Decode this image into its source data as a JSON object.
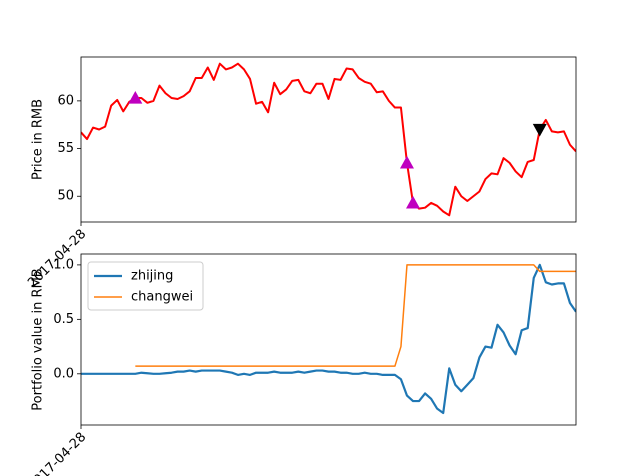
{
  "chart_data": [
    {
      "type": "line",
      "ylabel": "Price in RMB",
      "categories": [
        "2017-04-28",
        null,
        null,
        null,
        null,
        null,
        null,
        null,
        null,
        null,
        null,
        null,
        null,
        null,
        null,
        null,
        null,
        null,
        null,
        null,
        null,
        null,
        null,
        null,
        null,
        null,
        null,
        null,
        null,
        null,
        null,
        null,
        null,
        null,
        null,
        null,
        null,
        null,
        null,
        null,
        null,
        null,
        null,
        null,
        null,
        null,
        null,
        null,
        null,
        null,
        null,
        null,
        null,
        null,
        null,
        null,
        null,
        null,
        null,
        null,
        null,
        null,
        null,
        null,
        null,
        null,
        null,
        null,
        null,
        null,
        null,
        null,
        null,
        null,
        null,
        null,
        null,
        null,
        null,
        null,
        null,
        null,
        null
      ],
      "series": [
        {
          "color": "#ff0000",
          "linewidth": 2,
          "values": [
            56.7,
            56.0,
            57.2,
            57.0,
            57.3,
            59.5,
            60.1,
            58.9,
            59.9,
            60.3,
            60.3,
            59.8,
            60.0,
            61.6,
            60.8,
            60.3,
            60.2,
            60.5,
            61.0,
            62.4,
            62.4,
            63.5,
            62.2,
            63.9,
            63.3,
            63.5,
            63.9,
            63.3,
            62.3,
            59.7,
            59.9,
            58.8,
            61.9,
            60.7,
            61.2,
            62.1,
            62.2,
            61.0,
            60.8,
            61.8,
            61.8,
            60.2,
            62.3,
            62.2,
            63.4,
            63.3,
            62.4,
            62.0,
            61.8,
            60.9,
            61.0,
            60.0,
            59.3,
            59.3,
            53.5,
            49.3,
            48.7,
            48.8,
            49.3,
            49.0,
            48.4,
            48.0,
            51.0,
            50.0,
            49.5,
            50.0,
            50.5,
            51.8,
            52.4,
            52.3,
            54.0,
            53.5,
            52.6,
            52.0,
            53.6,
            53.8,
            57.0,
            58.0,
            56.8,
            56.7,
            56.8,
            55.4,
            54.7
          ]
        },
        {
          "color": "#bf00bf",
          "marker": "^",
          "x": [
            9,
            54,
            55
          ],
          "values": [
            60.3,
            53.5,
            49.3
          ]
        },
        {
          "color": "#000000",
          "marker": "v",
          "x": [
            76
          ],
          "values": [
            57.0
          ]
        }
      ],
      "ylim": [
        47.3,
        64.6
      ],
      "yticks": [
        50,
        55,
        60
      ],
      "legend": null
    },
    {
      "type": "line",
      "ylabel": "Portfolio value in RMB",
      "categories": [
        "2017-04-28",
        null,
        null,
        null,
        null,
        null,
        null,
        null,
        null,
        null,
        null,
        null,
        null,
        null,
        null,
        null,
        null,
        null,
        null,
        null,
        null,
        null,
        null,
        null,
        null,
        null,
        null,
        null,
        null,
        null,
        null,
        null,
        null,
        null,
        null,
        null,
        null,
        null,
        null,
        null,
        null,
        null,
        null,
        null,
        null,
        null,
        null,
        null,
        null,
        null,
        null,
        null,
        null,
        null,
        null,
        null,
        null,
        null,
        null,
        null,
        null,
        null,
        null,
        null,
        null,
        null,
        null,
        null,
        null,
        null,
        null,
        null,
        null,
        null,
        null,
        null,
        null,
        null,
        null,
        null,
        null,
        null,
        null
      ],
      "series": [
        {
          "name": "zhijing",
          "color": "#1f77b4",
          "linewidth": 2.2,
          "values": [
            0,
            0,
            0,
            0,
            0,
            0,
            0,
            0,
            0,
            0,
            0.01,
            0.005,
            0,
            0,
            0.005,
            0.01,
            0.02,
            0.02,
            0.03,
            0.02,
            0.03,
            0.03,
            0.03,
            0.03,
            0.02,
            0.01,
            -0.01,
            0,
            -0.01,
            0.01,
            0.01,
            0.01,
            0.02,
            0.01,
            0.01,
            0.01,
            0.02,
            0.01,
            0.02,
            0.03,
            0.03,
            0.02,
            0.02,
            0.01,
            0.01,
            0,
            0,
            0.01,
            0,
            0,
            -0.01,
            -0.01,
            -0.01,
            -0.05,
            -0.2,
            -0.25,
            -0.25,
            -0.18,
            -0.23,
            -0.32,
            -0.36,
            0.05,
            -0.1,
            -0.16,
            -0.1,
            -0.04,
            0.15,
            0.25,
            0.24,
            0.45,
            0.38,
            0.26,
            0.18,
            0.4,
            0.42,
            0.88,
            1.0,
            0.84,
            0.82,
            0.83,
            0.83,
            0.65,
            0.57
          ]
        },
        {
          "name": "changwei",
          "color": "#ff7f0e",
          "linewidth": 1.5,
          "values": [
            null,
            null,
            null,
            null,
            null,
            null,
            null,
            null,
            null,
            0.07,
            0.07,
            0.07,
            0.07,
            0.07,
            0.07,
            0.07,
            0.07,
            0.07,
            0.07,
            0.07,
            0.07,
            0.07,
            0.07,
            0.07,
            0.07,
            0.07,
            0.07,
            0.07,
            0.07,
            0.07,
            0.07,
            0.07,
            0.07,
            0.07,
            0.07,
            0.07,
            0.07,
            0.07,
            0.07,
            0.07,
            0.07,
            0.07,
            0.07,
            0.07,
            0.07,
            0.07,
            0.07,
            0.07,
            0.07,
            0.07,
            0.07,
            0.07,
            0.07,
            0.25,
            1.0,
            1.0,
            1.0,
            1.0,
            1.0,
            1.0,
            1.0,
            1.0,
            1.0,
            1.0,
            1.0,
            1.0,
            1.0,
            1.0,
            1.0,
            1.0,
            1.0,
            1.0,
            1.0,
            1.0,
            1.0,
            1.0,
            0.94,
            0.94,
            0.94,
            0.94,
            0.94,
            0.94,
            0.94
          ]
        }
      ],
      "ylim": [
        -0.47,
        1.1
      ],
      "yticks": [
        {
          "value": 0,
          "label": "0.0"
        },
        {
          "value": 0.5,
          "label": "0.5"
        },
        {
          "value": 1,
          "label": "1.0"
        }
      ],
      "legend": "upper left"
    }
  ]
}
